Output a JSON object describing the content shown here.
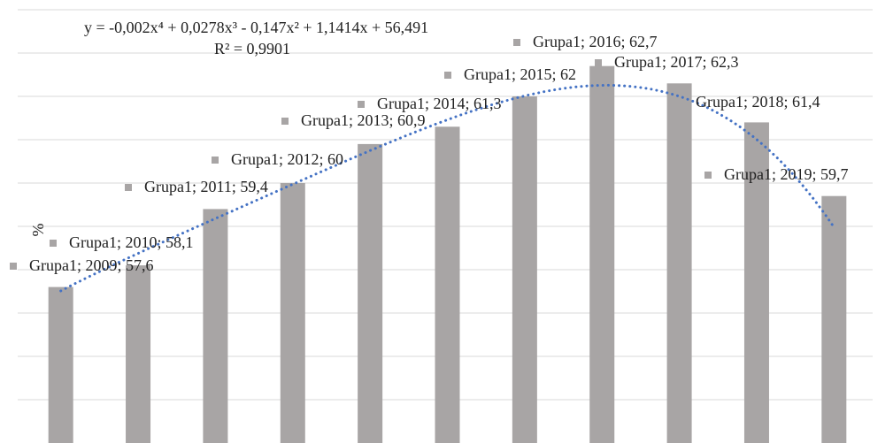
{
  "chart_data": {
    "type": "bar",
    "y_label": "%",
    "values": [
      57.6,
      58.1,
      59.4,
      60,
      60.9,
      61.3,
      62,
      62.7,
      62.3,
      61.4,
      59.7
    ],
    "value_labels": [
      "Grupa1; 2009; 57,6",
      "Grupa1; 2010; 58,1",
      "Grupa1; 2011; 59,4",
      "Grupa1; 2012; 60",
      "Grupa1; 2013; 60,9",
      "Grupa1; 2014; 61,3",
      "Grupa1; 2015; 62",
      "Grupa1; 2016; 62,7",
      "Grupa1; 2017; 62,3",
      "Grupa1; 2018; 61,4",
      "Grupa1; 2019; 59,7"
    ],
    "color": "#a8a5a5",
    "ylim": [
      54,
      64
    ],
    "yticks": [
      55,
      56,
      57,
      58,
      59,
      60,
      61,
      62,
      63,
      64
    ],
    "grid": true,
    "trendline": {
      "equation": "y = -0,002x⁴ + 0,0278x³ - 0,147x² + 1,1414x + 56,491",
      "r_squared": "R² = 0,9901",
      "coefficients": [
        -0.002,
        0.0278,
        -0.147,
        1.1414,
        56.491
      ],
      "color": "#4472c4"
    }
  }
}
